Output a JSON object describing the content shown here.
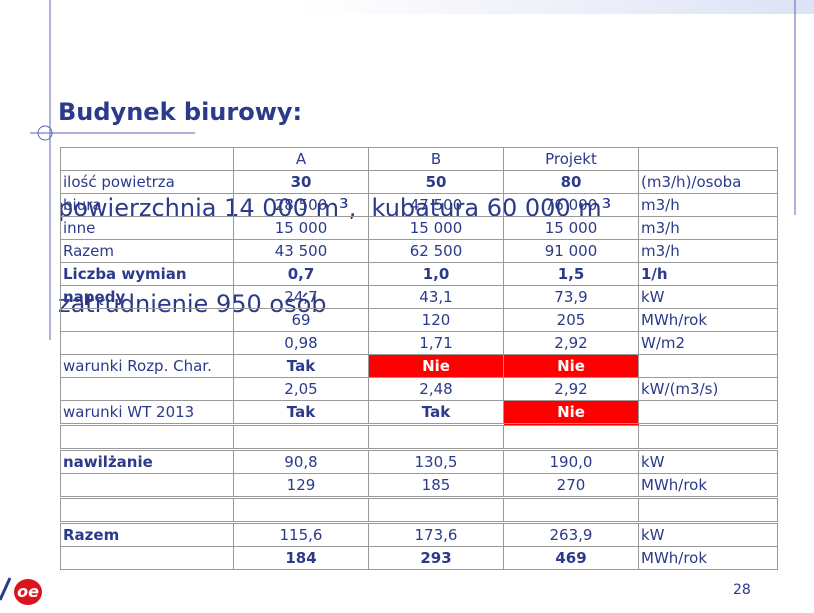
{
  "slide": {
    "title": "Budynek biurowy:",
    "subtitle_lines": [
      "powierzchnia 14 000 m³,  kubatura 60 000 m³",
      "zatrudnienie 950 osób"
    ],
    "page_number": "28",
    "logo": "oe"
  },
  "table": {
    "header": {
      "a": "A",
      "b": "B",
      "projekt": "Projekt"
    },
    "rows": [
      {
        "label": "ilość powietrza",
        "a": "30",
        "b": "50",
        "projekt": "80",
        "unit": "(m3/h)/osoba"
      },
      {
        "label": "biura",
        "a": "28 500",
        "b": "47 500",
        "projekt": "76 000",
        "unit": "m3/h"
      },
      {
        "label": "inne",
        "a": "15 000",
        "b": "15 000",
        "projekt": "15 000",
        "unit": "m3/h"
      },
      {
        "label": "Razem",
        "a": "43 500",
        "b": "62 500",
        "projekt": "91 000",
        "unit": "m3/h"
      },
      {
        "label": "Liczba wymian",
        "a": "0,7",
        "b": "1,0",
        "projekt": "1,5",
        "unit": "1/h"
      },
      {
        "label": "napędy",
        "a": "24,7",
        "b": "43,1",
        "projekt": "73,9",
        "unit": "kW"
      },
      {
        "a": "69",
        "b": "120",
        "projekt": "205",
        "unit": "MWh/rok"
      },
      {
        "a": "0,98",
        "b": "1,71",
        "projekt": "2,92",
        "unit": "W/m2"
      },
      {
        "label": "warunki Rozp. Char.",
        "a": "Tak",
        "b": "Nie",
        "projekt": "Nie"
      },
      {
        "a": "2,05",
        "b": "2,48",
        "projekt": "2,92",
        "unit": "kW/(m3/s)"
      },
      {
        "label": "warunki WT 2013",
        "a": "Tak",
        "b": "Tak",
        "projekt": "Nie"
      },
      {},
      {
        "label": "nawilżanie",
        "a": "90,8",
        "b": "130,5",
        "projekt": "190,0",
        "unit": "kW"
      },
      {
        "a": "129",
        "b": "185",
        "projekt": "270",
        "unit": "MWh/rok"
      },
      {},
      {
        "label": "Razem",
        "a": "115,6",
        "b": "173,6",
        "projekt": "263,9",
        "unit": "kW"
      },
      {
        "a": "184",
        "b": "293",
        "projekt": "469",
        "unit": "MWh/rok"
      }
    ]
  }
}
